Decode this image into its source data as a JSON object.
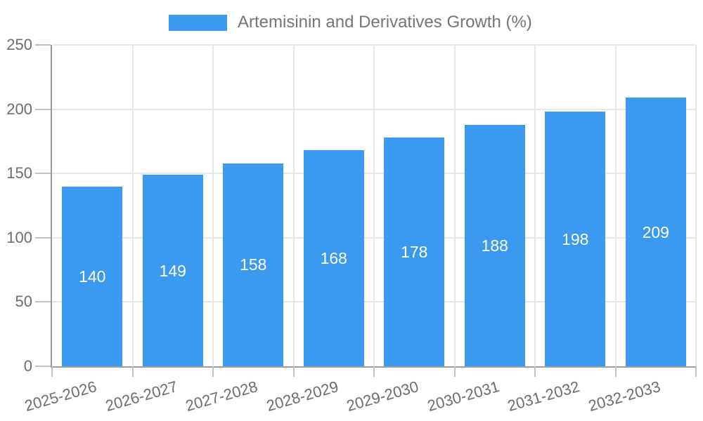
{
  "legend": {
    "label": "Artemisinin and Derivatives Growth (%)"
  },
  "chart_data": {
    "type": "bar",
    "title": "",
    "xlabel": "",
    "ylabel": "",
    "categories": [
      "2025-2026",
      "2026-2027",
      "2027-2028",
      "2028-2029",
      "2029-2030",
      "2030-2031",
      "2031-2032",
      "2032-2033"
    ],
    "series": [
      {
        "name": "Artemisinin and Derivatives Growth (%)",
        "values": [
          140,
          149,
          158,
          168,
          178,
          188,
          198,
          209
        ]
      }
    ],
    "ylim": [
      0,
      250
    ],
    "yticks": [
      0,
      50,
      100,
      150,
      200,
      250
    ],
    "grid": true,
    "legend_position": "top",
    "value_labels": "inside-center",
    "bar_color": "#3b9af0",
    "value_label_color": "#ffffff",
    "axis_text_color": "#6d6d6d",
    "grid_color": "#e7e7e7",
    "axis_line_color": "#9e9e9e"
  }
}
